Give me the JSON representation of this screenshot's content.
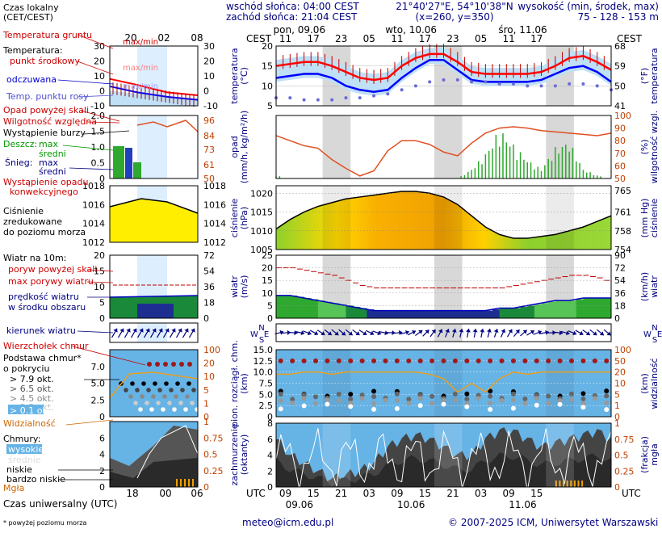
{
  "header": {
    "timezone_note": "Czas lokalny\n(CET/CEST)",
    "sunrise": "wschód słońca: 04:00 CEST",
    "sunset": "zachód słońca: 21:04 CEST",
    "coords": "21°40'27\"E, 54°10'38\"N",
    "grid": "(x=260, y=350)",
    "elevation_title": "wysokość (min, środek, max)",
    "elevation_values": "75 - 128 - 153 m"
  },
  "days": [
    {
      "label": "pon, 09.06",
      "footer": "09.06"
    },
    {
      "label": "wto, 10.06",
      "footer": "10.06"
    },
    {
      "label": "śro, 11.06",
      "footer": "11.06"
    }
  ],
  "time_axis": {
    "cest_label": "CEST",
    "utc_label": "UTC",
    "top_hours": [
      "11",
      "17",
      "23",
      "05",
      "11",
      "17",
      "23",
      "05",
      "11",
      "17"
    ],
    "bottom_hours": [
      "09",
      "15",
      "21",
      "03",
      "09",
      "15",
      "21",
      "03",
      "09",
      "15"
    ],
    "legend_top_hours": [
      "20",
      "02",
      "08"
    ],
    "legend_bottom_hours": [
      "18",
      "00",
      "06"
    ],
    "legend_bottom_title": "Czas uniwersalny (UTC)"
  },
  "legend": {
    "temp_ground": "Temperatura gruntu",
    "temp_ground_max_min": "max/min",
    "temp_title": "Temperatura:",
    "temp_mid": "punkt środkowy",
    "temp_max_min": "max/min",
    "temp_felt": "odczuwana",
    "temp_felt_max_min": "max/min",
    "temp_dew": "Temp. punktu rosy",
    "precip_over": "Opad powyżej skali",
    "humidity": "Wilgotność względna",
    "storm": "Wystąpienie burzy",
    "rain": "Deszcz:",
    "rain_max": "max",
    "rain_mean": "średni",
    "snow": "Śnieg:",
    "snow_max": "max",
    "snow_mean": "średni",
    "convective_1": "Wystąpienie opadu",
    "convective_2": "konwekcyjnego",
    "pressure_1": "Ciśnienie",
    "pressure_2": "zredukowane",
    "pressure_3": "do poziomu morza",
    "wind_title": "Wiatr na 10m:",
    "gust_over": "poryw powyżej skali",
    "gust_max": "max porywy wiatru",
    "wind_speed_1": "prędkość wiatru",
    "wind_speed_2": "w środku obszaru",
    "wind_dir": "kierunek wiatru",
    "cloud_top": "Wierzchołek chmur",
    "cloud_base_1": "Podstawa chmur*",
    "cloud_base_2": "o pokryciu",
    "cov1": "> 7.9 okt.",
    "cov2": "> 6.5 okt.",
    "cov3": "> 4.5 okt.",
    "cov4": "> 2.5 okt.",
    "cov5": "> 0.1 okt.",
    "visibility": "Widzialność",
    "clouds_title": "Chmury:",
    "cl_high": "wysokie",
    "cl_mid": "średnie",
    "cl_low": "niskie",
    "cl_vlow": "bardzo niskie",
    "fog": "Mgła"
  },
  "panel_labels": {
    "temp_left": "temperatura",
    "temp_left_unit": "(°C)",
    "temp_right": "temperatura",
    "temp_right_unit": "(°F)",
    "precip_left": "opad",
    "precip_left_unit": "(mm/h, kg/m²/h)",
    "precip_right": "wilgotność wzgl.",
    "precip_right_unit": "(%)",
    "press_left": "ciśnienie",
    "press_left_unit": "(hPa)",
    "press_right": "ciśnienie",
    "press_right_unit": "(mm Hg)",
    "wind_left": "wiatr",
    "wind_left_unit": "(m/s)",
    "wind_right": "wiatr",
    "wind_right_unit": "(km/h)",
    "cloud_left_1": "pion. rozciągł. chm.",
    "cloud_left_2": "(km)",
    "cloud_right_1": "widzialność",
    "cloud_right_2": "(km)",
    "cover_left_1": "zachmurzenie",
    "cover_left_2": "(oktanty)",
    "cover_right_1": "mgła",
    "cover_right_2": "(frakcja)",
    "compass_n": "N",
    "compass_w": "W",
    "compass_s": "S",
    "compass_e": "E"
  },
  "footer": {
    "note": "* powyżej poziomu morza",
    "email": "meteo@icm.edu.pl",
    "copyright": "© 2007-2025 ICM, Uniwersytet Warszawski"
  },
  "colors": {
    "navy": "#000080",
    "temp_red": "#ff0000",
    "temp_blue": "#0000ff",
    "sky": "#66b3e6",
    "night": "#d8d8d8",
    "pressure_yellow": "#ffee00",
    "humidity": "#e05020",
    "visibility": "#e8a020"
  },
  "chart_data": [
    {
      "type": "line",
      "name": "temperature",
      "x_hours": [
        0,
        3,
        6,
        9,
        12,
        15,
        18,
        21,
        24,
        27,
        30,
        33,
        36,
        39,
        42,
        45,
        48,
        51,
        54,
        57,
        60,
        63,
        66,
        69,
        72
      ],
      "series": [
        {
          "name": "punkt środkowy",
          "values": [
            15,
            15.5,
            16,
            16,
            15,
            13.5,
            12,
            11.5,
            12,
            15,
            17,
            18,
            18,
            16,
            13.5,
            13,
            13,
            13,
            13,
            13.5,
            15,
            17,
            17.5,
            16,
            14
          ]
        },
        {
          "name": "odczuwana",
          "values": [
            12,
            12.5,
            13,
            13,
            12,
            10,
            9,
            8.5,
            9,
            12,
            14.5,
            16.5,
            16.5,
            14,
            11.5,
            11,
            11,
            11,
            11,
            11.5,
            13,
            14.5,
            15,
            13.5,
            11
          ]
        },
        {
          "name": "Temp. punktu rosy",
          "values": [
            7,
            7,
            6.5,
            6.5,
            6.5,
            7,
            7,
            7.5,
            8,
            9,
            10,
            11,
            11.5,
            11.5,
            11,
            11,
            10.5,
            10.5,
            10,
            10,
            10,
            10.5,
            10.5,
            10,
            9
          ]
        }
      ],
      "ylim": [
        5,
        20
      ],
      "y_ticks": [
        5,
        10,
        15,
        20
      ],
      "y_ticks_f": [
        41,
        50,
        59,
        68
      ]
    },
    {
      "type": "bar",
      "name": "precipitation",
      "x_hours": [
        0,
        3,
        6,
        9,
        12,
        15,
        18,
        21,
        24,
        27,
        30,
        33,
        36,
        39,
        42,
        45,
        48,
        51,
        54,
        57,
        60,
        63,
        66,
        69,
        72
      ],
      "series": [
        {
          "name": "Wilgotność względna",
          "values": [
            84,
            80,
            76,
            74,
            65,
            58,
            52,
            56,
            72,
            80,
            80,
            77,
            71,
            68,
            78,
            86,
            90,
            91,
            90,
            88,
            87,
            86,
            85,
            84,
            86
          ]
        },
        {
          "name": "rain_max",
          "values": [
            0.1,
            0,
            0,
            0,
            0,
            0,
            0,
            0,
            0,
            0,
            0,
            0,
            0,
            0,
            0.3,
            0.8,
            1.6,
            1.1,
            0.6,
            0.3,
            1.0,
            1.2,
            0.3,
            0.1,
            0
          ]
        }
      ],
      "ylim": [
        0,
        2.0
      ],
      "y_ticks": [
        0,
        0.5,
        1.0,
        1.5,
        2.0
      ],
      "y2_ticks": [
        50,
        61,
        73,
        84,
        96
      ],
      "y2_right_ticks": [
        50,
        60,
        70,
        80,
        90,
        100
      ]
    },
    {
      "type": "area",
      "name": "pressure",
      "x_hours": [
        0,
        3,
        6,
        9,
        12,
        15,
        18,
        21,
        24,
        27,
        30,
        33,
        36,
        39,
        42,
        45,
        48,
        51,
        54,
        57,
        60,
        63,
        66,
        69,
        72
      ],
      "values": [
        1010.5,
        1013,
        1015,
        1016.5,
        1017.5,
        1018.5,
        1019,
        1019.5,
        1020,
        1020.5,
        1020.5,
        1020,
        1019,
        1017,
        1014,
        1011,
        1009,
        1008,
        1008,
        1008.5,
        1009,
        1010,
        1011,
        1012.5,
        1014
      ],
      "ylim": [
        1005,
        1022
      ],
      "y_ticks": [
        1005,
        1010,
        1015,
        1020
      ],
      "y2_ticks": [
        754,
        758,
        761,
        765
      ]
    },
    {
      "type": "line",
      "name": "wind",
      "x_hours": [
        0,
        3,
        6,
        9,
        12,
        15,
        18,
        21,
        24,
        27,
        30,
        33,
        36,
        39,
        42,
        45,
        48,
        51,
        54,
        57,
        60,
        63,
        66,
        69,
        72
      ],
      "series": [
        {
          "name": "max porywy wiatru",
          "values": [
            20,
            20,
            19,
            18,
            17,
            15,
            13,
            12,
            12,
            12,
            12,
            12,
            12,
            12,
            12,
            12,
            12,
            13,
            14,
            15,
            16,
            17,
            17,
            16,
            14
          ]
        },
        {
          "name": "prędkość wiatru",
          "values": [
            9,
            9,
            8,
            7,
            6,
            5,
            4,
            3,
            3,
            3,
            3,
            3,
            3,
            3,
            3,
            3,
            4,
            4,
            5,
            6,
            7,
            7,
            8,
            8,
            8
          ]
        }
      ],
      "ylim": [
        0,
        25
      ],
      "y_ticks": [
        0,
        5,
        10,
        15,
        20,
        25
      ],
      "y2_ticks": [
        0,
        18,
        36,
        54,
        72,
        90
      ]
    },
    {
      "type": "scatter",
      "name": "cloud_base",
      "x_hours": [
        0,
        3,
        6,
        9,
        12,
        15,
        18,
        21,
        24,
        27,
        30,
        33,
        36,
        39,
        42,
        45,
        48,
        51,
        54,
        57,
        60,
        63,
        66,
        69,
        72
      ],
      "series": [
        {
          "name": "Widzialność",
          "values": [
            18,
            18,
            20,
            20,
            18,
            20,
            20,
            20,
            20,
            20,
            20,
            18,
            14,
            6,
            10,
            6,
            14,
            20,
            18,
            20,
            20,
            20,
            20,
            20,
            20
          ]
        },
        {
          "name": "Wierzchołek chmur",
          "values": [
            11,
            11,
            11,
            11,
            11,
            11,
            11,
            11,
            11,
            11,
            11,
            11,
            11,
            11,
            11,
            11,
            11,
            11,
            11,
            11,
            11,
            11,
            11,
            11,
            11
          ]
        }
      ],
      "ylim": [
        0,
        15
      ],
      "y_ticks": [
        0,
        2.5,
        5.0,
        7.5,
        10.0,
        12.5,
        15.0
      ],
      "y2_ticks": [
        0,
        1,
        5,
        10,
        20,
        50,
        100
      ]
    },
    {
      "type": "area",
      "name": "cloud_cover",
      "x_hours": [
        0,
        3,
        6,
        9,
        12,
        15,
        18,
        21,
        24,
        27,
        30,
        33,
        36,
        39,
        42,
        45,
        48,
        51,
        54,
        57,
        60,
        63,
        66,
        69,
        72
      ],
      "values": [
        6,
        4,
        3,
        2,
        1,
        1.5,
        2,
        3,
        5,
        6,
        6.5,
        6,
        5,
        4,
        4,
        6,
        7,
        7,
        6,
        5,
        5.5,
        6,
        6.5,
        7,
        6
      ],
      "ylim": [
        0,
        8
      ],
      "y_ticks": [
        0,
        2,
        4,
        6,
        8
      ],
      "y2_ticks": [
        0,
        0.25,
        0.5,
        0.75,
        1
      ]
    }
  ]
}
